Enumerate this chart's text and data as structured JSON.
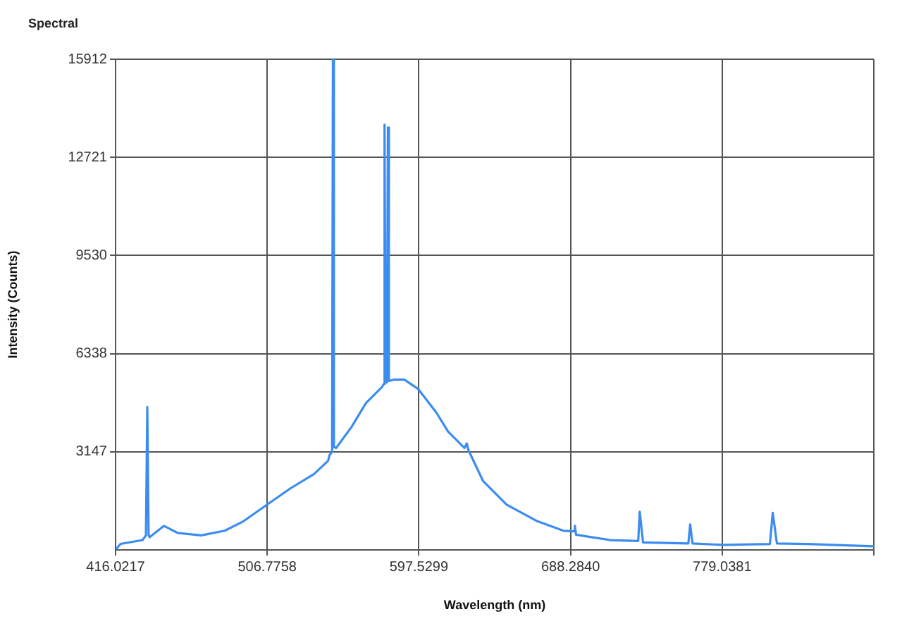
{
  "chart_data": {
    "type": "line",
    "title": "Spectral",
    "xlabel": "Wavelength (nm)",
    "ylabel": "Intensity (Counts)",
    "xlim": [
      416.0217,
      869.7922
    ],
    "xticks": [
      416.0217,
      506.7758,
      597.5299,
      {
        "value": 688.284,
        "label": "688.2840"
      },
      779.0381,
      {
        "value": 869.7922,
        "label": null
      }
    ],
    "ylim": [
      -44,
      15912
    ],
    "yticks": [
      3147,
      6338,
      9530,
      12721,
      15912
    ],
    "grid": true,
    "legend": false,
    "marker": "none",
    "line_style": "solid",
    "series": [
      {
        "color": "#3c8cf0",
        "x": [
          416.7,
          419,
          432.2,
          434.2,
          435,
          435.8,
          436.4,
          444.9,
          453.3,
          467.3,
          481.4,
          492.6,
          506.7,
          520.8,
          534.8,
          543.2,
          544.1,
          545.6,
          546.1,
          546.7,
          548,
          557.3,
          565.8,
          575.6,
          576.5,
          577,
          577.6,
          578.4,
          579,
          579.6,
          582.6,
          588.8,
          597.2,
          608,
          615,
          624.8,
          626.2,
          627.2,
          636,
          650.1,
          668.4,
          684,
          690.2,
          690.9,
          691.6,
          698,
          712,
          728.8,
          729.7,
          731.7,
          758.8,
          759.9,
          761.3,
          779.4,
          807.6,
          809.3,
          811.8,
          830,
          869.7
        ],
        "values": [
          0,
          150,
          276,
          430,
          4600,
          430,
          370,
          737,
          506,
          428,
          580,
          889,
          1428,
          1962,
          2422,
          2855,
          3040,
          3150,
          15912,
          3300,
          3270,
          3960,
          4725,
          5263,
          5350,
          13783,
          5400,
          5400,
          13691,
          5450,
          5494,
          5494,
          5185,
          4421,
          3804,
          3270,
          3421,
          3200,
          2192,
          1428,
          889,
          580,
          560,
          737,
          450,
          396,
          276,
          244,
          1197,
          198,
          166,
          783,
          166,
          120,
          150,
          1165,
          166,
          150,
          74
        ]
      }
    ]
  }
}
